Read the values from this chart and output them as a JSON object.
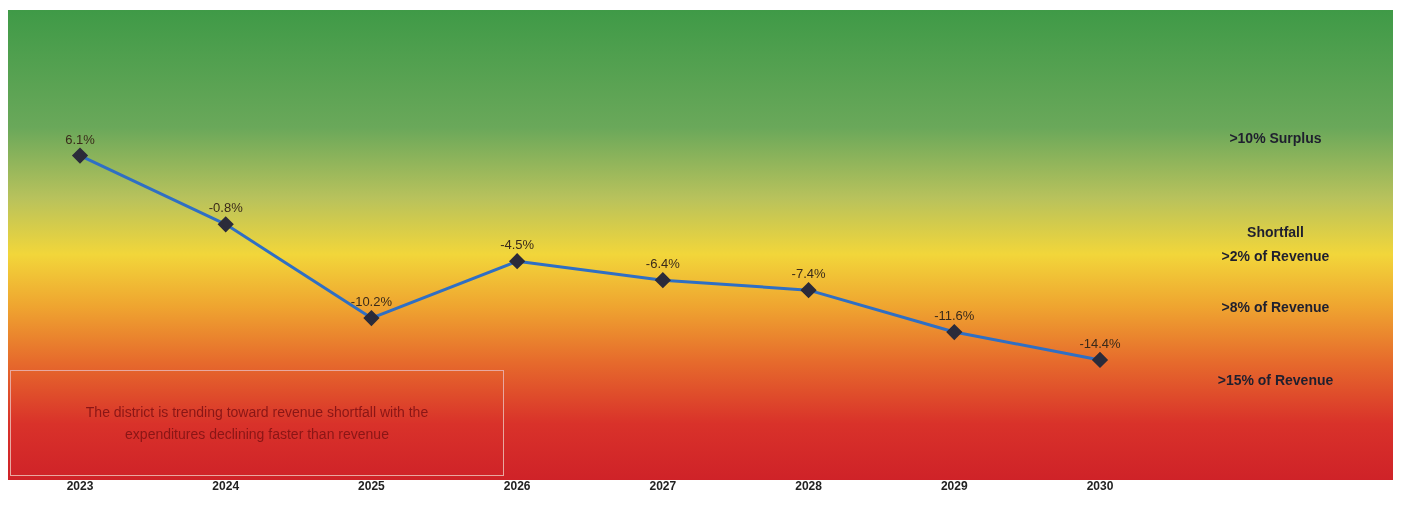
{
  "chart_data": {
    "type": "line",
    "categories": [
      "2023",
      "2024",
      "2025",
      "2026",
      "2027",
      "2028",
      "2029",
      "2030"
    ],
    "series": [
      {
        "color": "#2f6fc4",
        "values": [
          6.1,
          -0.8,
          -10.2,
          -4.5,
          -6.4,
          -7.4,
          -11.6,
          -14.4
        ],
        "value_labels": [
          "6.1%",
          "-0.8%",
          "-10.2%",
          "-4.5%",
          "-6.4%",
          "-7.4%",
          "-11.6%",
          "-14.4%"
        ]
      }
    ],
    "marker": "diamond",
    "line_style": "solid",
    "grid": false,
    "legend": false,
    "tick_labels": "x",
    "annotations": [
      ">10% Surplus",
      "Shortfall\n>2% of Revenue",
      ">8% of Revenue",
      ">15% of Revenue",
      "The district is trending toward revenue shortfall with the expenditures declining faster than revenue"
    ]
  }
}
